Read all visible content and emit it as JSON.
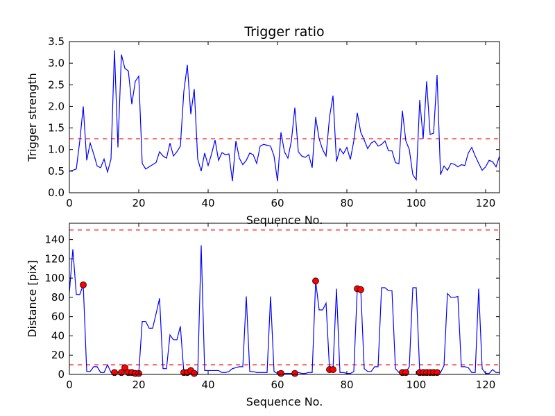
{
  "chart_data": [
    {
      "type": "line",
      "title": "Trigger ratio",
      "xlabel": "Sequence No.",
      "ylabel": "Trigger strength",
      "xlim": [
        0,
        124
      ],
      "ylim": [
        0,
        3.5
      ],
      "xticks": [
        0,
        20,
        40,
        60,
        80,
        100,
        120
      ],
      "yticks": [
        0.0,
        0.5,
        1.0,
        1.5,
        2.0,
        2.5,
        3.0,
        3.5
      ],
      "ytick_labels": [
        "0.0",
        "0.5",
        "1.0",
        "1.5",
        "2.0",
        "2.5",
        "3.0",
        "3.5"
      ],
      "grid": false,
      "reference_lines": [
        {
          "y": 1.25,
          "color": "#ff0000",
          "style": "dashed"
        }
      ],
      "series": [
        {
          "color": "#0000ff",
          "x": [
            0,
            1,
            2,
            3,
            4,
            5,
            6,
            7,
            8,
            9,
            10,
            11,
            12,
            13,
            14,
            15,
            16,
            17,
            18,
            19,
            20,
            21,
            22,
            23,
            24,
            25,
            26,
            27,
            28,
            29,
            30,
            31,
            32,
            33,
            34,
            35,
            36,
            37,
            38,
            39,
            40,
            41,
            42,
            43,
            44,
            45,
            46,
            47,
            48,
            49,
            50,
            51,
            52,
            53,
            54,
            55,
            56,
            57,
            58,
            59,
            60,
            61,
            62,
            63,
            64,
            65,
            66,
            67,
            68,
            69,
            70,
            71,
            72,
            73,
            74,
            75,
            76,
            77,
            78,
            79,
            80,
            81,
            82,
            83,
            84,
            85,
            86,
            87,
            88,
            89,
            90,
            91,
            92,
            93,
            94,
            95,
            96,
            97,
            98,
            99,
            100,
            101,
            102,
            103,
            104,
            105,
            106,
            107,
            108,
            109,
            110,
            111,
            112,
            113,
            114,
            115,
            116,
            117,
            118,
            119,
            120,
            121,
            122,
            123,
            124
          ],
          "y": [
            0.5,
            0.52,
            0.55,
            1.2,
            2.0,
            0.75,
            1.15,
            0.9,
            0.62,
            0.58,
            0.78,
            0.48,
            0.78,
            3.3,
            1.05,
            3.2,
            2.88,
            2.82,
            2.05,
            2.58,
            2.7,
            0.68,
            0.55,
            0.6,
            0.65,
            0.7,
            0.95,
            0.85,
            0.8,
            1.15,
            0.85,
            0.95,
            1.08,
            2.35,
            2.96,
            1.82,
            2.4,
            0.78,
            0.5,
            0.92,
            0.63,
            0.9,
            1.22,
            0.75,
            0.93,
            0.88,
            0.9,
            0.27,
            1.2,
            0.8,
            0.65,
            0.75,
            0.92,
            0.88,
            0.68,
            1.08,
            1.12,
            1.1,
            1.08,
            0.85,
            0.27,
            1.4,
            0.95,
            0.8,
            1.2,
            1.97,
            0.95,
            0.85,
            0.82,
            0.88,
            0.58,
            1.75,
            1.25,
            1.0,
            0.85,
            1.75,
            2.25,
            0.72,
            1.02,
            0.9,
            1.05,
            0.77,
            1.2,
            1.85,
            1.4,
            1.22,
            1.02,
            1.15,
            1.2,
            1.08,
            1.12,
            1.2,
            0.97,
            0.97,
            0.7,
            0.67,
            1.9,
            1.2,
            1.0,
            0.42,
            0.3,
            2.15,
            1.25,
            2.58,
            1.35,
            1.38,
            2.73,
            0.42,
            0.62,
            0.52,
            0.68,
            0.66,
            0.6,
            0.65,
            0.63,
            0.92,
            1.05,
            0.85,
            0.68,
            0.52,
            0.6,
            0.75,
            0.72,
            0.6,
            0.85
          ]
        }
      ]
    },
    {
      "type": "line",
      "xlabel": "Sequence No.",
      "ylabel": "Distance [pix]",
      "xlim": [
        0,
        124
      ],
      "ylim": [
        0,
        157
      ],
      "xticks": [
        0,
        20,
        40,
        60,
        80,
        100,
        120
      ],
      "yticks": [
        0,
        20,
        40,
        60,
        80,
        100,
        120,
        140
      ],
      "ytick_labels": [
        "0",
        "20",
        "40",
        "60",
        "80",
        "100",
        "120",
        "140"
      ],
      "grid": false,
      "reference_lines": [
        {
          "y": 10,
          "color": "#ff0000",
          "style": "dashed"
        },
        {
          "y": 150,
          "color": "#ff0000",
          "style": "dashed"
        }
      ],
      "series": [
        {
          "color": "#0000ff",
          "x": [
            0,
            1,
            2,
            3,
            4,
            5,
            6,
            7,
            8,
            9,
            10,
            11,
            12,
            13,
            14,
            15,
            16,
            17,
            18,
            19,
            20,
            21,
            22,
            23,
            24,
            25,
            26,
            27,
            28,
            29,
            30,
            31,
            32,
            33,
            34,
            35,
            36,
            37,
            38,
            39,
            40,
            41,
            42,
            43,
            44,
            45,
            46,
            47,
            48,
            49,
            50,
            51,
            52,
            53,
            54,
            55,
            56,
            57,
            58,
            59,
            60,
            61,
            62,
            63,
            64,
            65,
            66,
            67,
            68,
            69,
            70,
            71,
            72,
            73,
            74,
            75,
            76,
            77,
            78,
            79,
            80,
            81,
            82,
            83,
            84,
            85,
            86,
            87,
            88,
            89,
            90,
            91,
            92,
            93,
            94,
            95,
            96,
            97,
            98,
            99,
            100,
            101,
            102,
            103,
            104,
            105,
            106,
            107,
            108,
            109,
            110,
            111,
            112,
            113,
            114,
            115,
            116,
            117,
            118,
            119,
            120,
            121,
            122,
            123,
            124
          ],
          "y": [
            85,
            130,
            83,
            83,
            93,
            3,
            3,
            8,
            8,
            2,
            2,
            10,
            2,
            2,
            2,
            2,
            7,
            2,
            2,
            1,
            1,
            55,
            55,
            48,
            48,
            63,
            79,
            6,
            6,
            41,
            36,
            36,
            50,
            2,
            2,
            4,
            1,
            1,
            134,
            4,
            4,
            4,
            4,
            4,
            2,
            2,
            3,
            6,
            7,
            8,
            8,
            81,
            3,
            3,
            2,
            2,
            2,
            2,
            81,
            3,
            1,
            1,
            1,
            1,
            1,
            1,
            2,
            1,
            1,
            2,
            2,
            97,
            67,
            67,
            74,
            5,
            5,
            89,
            2,
            2,
            1,
            1,
            3,
            89,
            88,
            6,
            3,
            3,
            8,
            8,
            90,
            90,
            87,
            87,
            6,
            2,
            2,
            2,
            8,
            90,
            90,
            2,
            2,
            2,
            2,
            2,
            2,
            2,
            9,
            84,
            80,
            80,
            81,
            8,
            8,
            7,
            2,
            2,
            89,
            6,
            1,
            1,
            5,
            2,
            2
          ]
        },
        {
          "type": "scatter",
          "color": "#ff0000",
          "x": [
            4,
            13,
            15,
            16,
            17,
            18,
            19,
            20,
            33,
            34,
            35,
            36,
            61,
            65,
            71,
            75,
            76,
            83,
            84,
            96,
            97,
            101,
            102,
            103,
            104,
            105,
            106
          ],
          "y": [
            93,
            2,
            2,
            7,
            2,
            2,
            1,
            1,
            2,
            2,
            4,
            1,
            1,
            1,
            97,
            5,
            5,
            89,
            88,
            2,
            2,
            2,
            2,
            2,
            2,
            2,
            2
          ]
        }
      ]
    }
  ]
}
